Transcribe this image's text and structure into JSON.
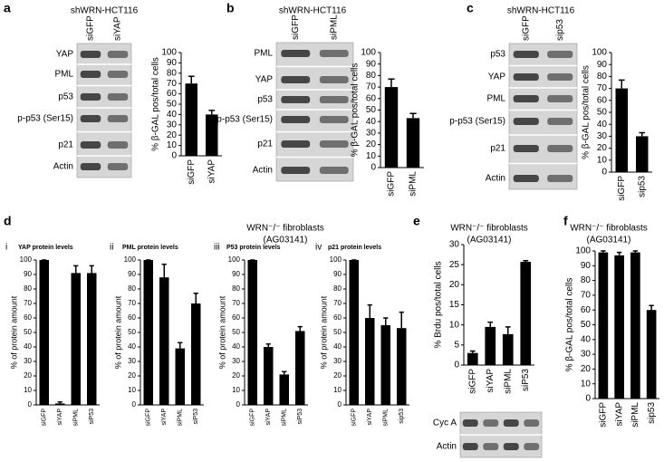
{
  "panel_letters": [
    "a",
    "b",
    "c",
    "d",
    "e",
    "f"
  ],
  "blots": [
    {
      "title": "shWRN-HCT116",
      "lanes": [
        "siGFP",
        "siYAP"
      ],
      "rows": [
        "YAP",
        "PML",
        "p53",
        "p-p53 (Ser15)",
        "p21",
        "Actin"
      ]
    },
    {
      "title": "shWRN-HCT116",
      "lanes": [
        "siGFP",
        "siPML"
      ],
      "rows": [
        "PML",
        "YAP",
        "p53",
        "p-p53 (Ser15)",
        "p21",
        "Actin"
      ]
    },
    {
      "title": "shWRN-HCT116",
      "lanes": [
        "siGFP",
        "sip53"
      ],
      "rows": [
        "p53",
        "YAP",
        "PML",
        "p-p53 (Ser15)",
        "p21",
        "Actin"
      ]
    },
    {
      "rows": [
        "Cyc A",
        "Actin"
      ]
    }
  ],
  "group_headers": [
    {
      "line1": "WRN⁻/⁻ fibroblasts",
      "line2": "(AG03141)"
    },
    {
      "line1": "WRN⁻/⁻ fibroblasts",
      "line2": "(AG03141)"
    },
    {
      "line1": "WRN⁻/⁻ fibroblasts",
      "line2": "(AG03141)"
    }
  ],
  "chart_data": [
    {
      "type": "bar",
      "y_label": "% β-GAL pos/total cells",
      "categories": [
        "siGFP",
        "siYAP"
      ],
      "values": [
        70,
        40
      ],
      "errors": [
        7,
        4
      ],
      "color": "#000000",
      "ylim": [
        0,
        100
      ],
      "yticks": [
        0,
        10,
        20,
        30,
        40,
        50,
        60,
        70,
        80,
        90,
        100
      ]
    },
    {
      "type": "bar",
      "y_label": "% β-GAL pos/total cells",
      "categories": [
        "siGFP",
        "siPML"
      ],
      "values": [
        70,
        43
      ],
      "errors": [
        7,
        4
      ],
      "color": "#000000",
      "ylim": [
        0,
        100
      ],
      "yticks": [
        0,
        10,
        20,
        30,
        40,
        50,
        60,
        70,
        80,
        90,
        100
      ]
    },
    {
      "type": "bar",
      "y_label": "% β-GAL pos/total cells",
      "categories": [
        "siGFP",
        "sip53"
      ],
      "values": [
        70,
        30
      ],
      "errors": [
        7,
        3
      ],
      "color": "#000000",
      "ylim": [
        0,
        100
      ],
      "yticks": [
        0,
        10,
        20,
        30,
        40,
        50,
        60,
        70,
        80,
        90,
        100
      ]
    },
    {
      "type": "bar",
      "label": "i",
      "title": "YAP protein levels",
      "y_label": "% of protein amount",
      "categories": [
        "siGFP",
        "siYAP",
        "siPML",
        "siP53"
      ],
      "values": [
        100,
        1,
        91,
        91
      ],
      "errors": [
        0,
        1,
        5,
        5
      ],
      "color": "#000000",
      "ylim": [
        0,
        100
      ],
      "yticks": [
        0,
        10,
        20,
        30,
        40,
        50,
        60,
        70,
        80,
        90,
        100
      ]
    },
    {
      "type": "bar",
      "label": "ii",
      "title": "PML protein levels",
      "y_label": "% of protein amount",
      "categories": [
        "siGFP",
        "siYAP",
        "siPML",
        "siP53"
      ],
      "values": [
        100,
        88,
        39,
        70
      ],
      "errors": [
        0,
        9,
        4,
        7
      ],
      "color": "#000000",
      "ylim": [
        0,
        100
      ],
      "yticks": [
        0,
        10,
        20,
        30,
        40,
        50,
        60,
        70,
        80,
        90,
        100
      ]
    },
    {
      "type": "bar",
      "label": "iii",
      "title": "P53 protein levels",
      "y_label": "% of protein amount",
      "categories": [
        "siGFP",
        "siYAP",
        "siPML",
        "siP53"
      ],
      "values": [
        100,
        40,
        21,
        51
      ],
      "errors": [
        0,
        2,
        2,
        3
      ],
      "color": "#000000",
      "ylim": [
        0,
        100
      ],
      "yticks": [
        0,
        10,
        20,
        30,
        40,
        50,
        60,
        70,
        80,
        90,
        100
      ]
    },
    {
      "type": "bar",
      "label": "iv",
      "title": "p21 protein levels",
      "y_label": "% of protein amount",
      "categories": [
        "siGFP",
        "siYAP",
        "siPML",
        "sip53"
      ],
      "values": [
        100,
        60,
        55,
        53
      ],
      "errors": [
        0,
        9,
        5,
        11
      ],
      "color": "#000000",
      "ylim": [
        0,
        100
      ],
      "yticks": [
        0,
        10,
        20,
        30,
        40,
        50,
        60,
        70,
        80,
        90,
        100
      ]
    },
    {
      "type": "bar",
      "y_label": "% Brdu pos/total cells",
      "categories": [
        "siGFP",
        "siYAP",
        "siPML",
        "siP53"
      ],
      "values": [
        3,
        9.5,
        7.7,
        25.7
      ],
      "errors": [
        0.5,
        1.2,
        1.8,
        0.3
      ],
      "color": "#000000",
      "ylim": [
        0,
        30
      ],
      "yticks": [
        0,
        5,
        10,
        15,
        20,
        25,
        30
      ]
    },
    {
      "type": "bar",
      "y_label": "% β-GAL pos/total cells",
      "categories": [
        "siGFP",
        "siYAP",
        "siPML",
        "sip53"
      ],
      "values": [
        99,
        97,
        99,
        60
      ],
      "errors": [
        1,
        2,
        1,
        3
      ],
      "color": "#000000",
      "ylim": [
        0,
        100
      ],
      "yticks": [
        0,
        10,
        20,
        30,
        40,
        50,
        60,
        70,
        80,
        90,
        100
      ]
    }
  ]
}
